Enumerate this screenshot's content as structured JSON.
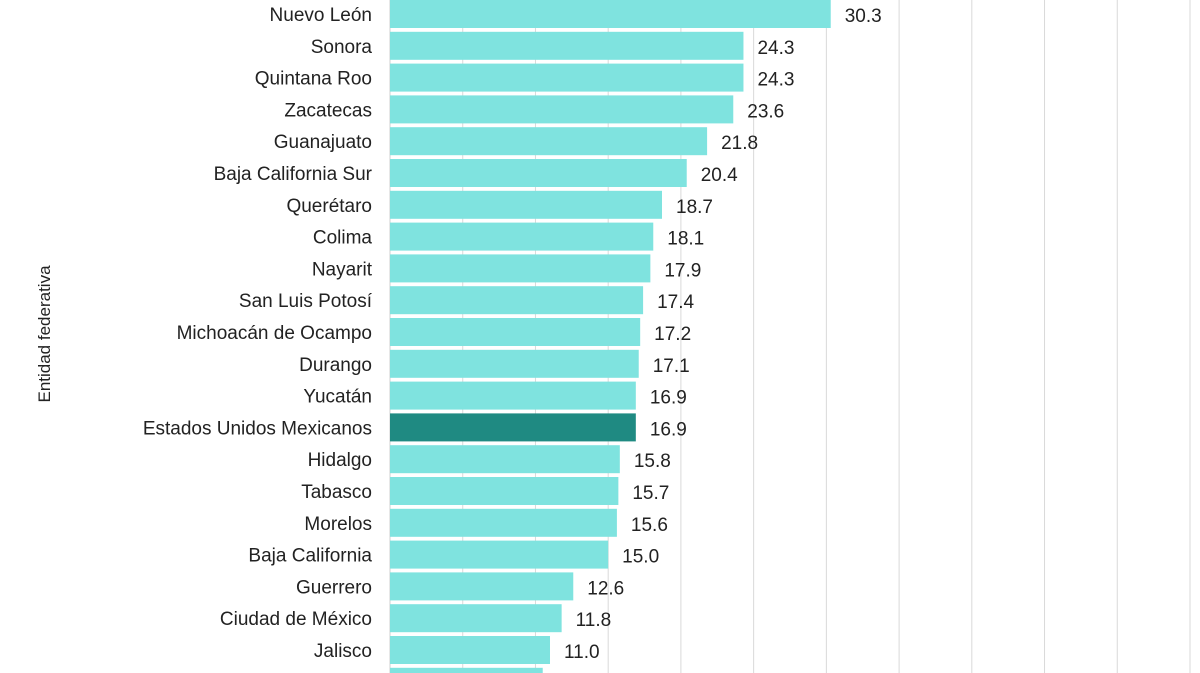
{
  "chart_data": {
    "type": "bar",
    "orientation": "horizontal",
    "title": "",
    "xlabel": "",
    "ylabel": "Entidad federativa",
    "categories": [
      "Nuevo León",
      "Sonora",
      "Quintana Roo",
      "Zacatecas",
      "Guanajuato",
      "Baja California Sur",
      "Querétaro",
      "Colima",
      "Nayarit",
      "San Luis Potosí",
      "Michoacán de Ocampo",
      "Durango",
      "Yucatán",
      "Estados Unidos Mexicanos",
      "Hidalgo",
      "Tabasco",
      "Morelos",
      "Baja California",
      "Guerrero",
      "Ciudad de México",
      "Jalisco"
    ],
    "values": [
      30.3,
      24.3,
      24.3,
      23.6,
      21.8,
      20.4,
      18.7,
      18.1,
      17.9,
      17.4,
      17.2,
      17.1,
      16.9,
      16.9,
      15.8,
      15.7,
      15.6,
      15.0,
      12.6,
      11.8,
      11.0
    ],
    "value_labels": [
      "30.3",
      "24.3",
      "24.3",
      "23.6",
      "21.8",
      "20.4",
      "18.7",
      "18.1",
      "17.9",
      "17.4",
      "17.2",
      "17.1",
      "16.9",
      "16.9",
      "15.8",
      "15.7",
      "15.6",
      "15.0",
      "12.6",
      "11.8",
      "11.0"
    ],
    "highlight_category": "Estados Unidos Mexicanos",
    "xlim": [
      0,
      55
    ],
    "grid": true,
    "legend": "none",
    "colors": {
      "bar": "#7fe3df",
      "highlight": "#1f8a82"
    }
  }
}
